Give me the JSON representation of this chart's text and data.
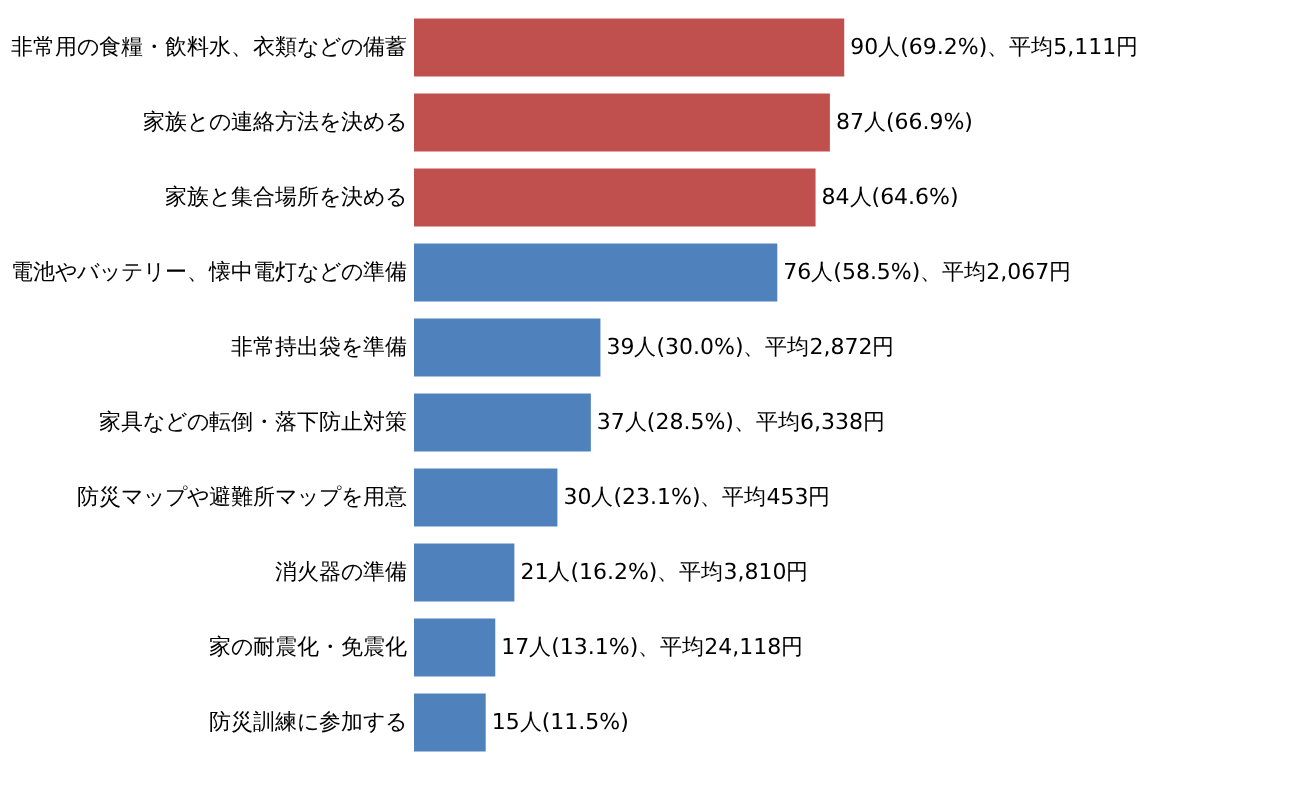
{
  "chart_data": {
    "type": "bar",
    "orientation": "horizontal",
    "categories": [
      "非常用の食糧・飲料水、衣類などの備蓄",
      "家族との連絡方法を決める",
      "家族と集合場所を決める",
      "電池やバッテリー、懐中電灯などの準備",
      "非常持出袋を準備",
      "家具などの転倒・落下防止対策",
      "防災マップや避難所マップを用意",
      "消火器の準備",
      "家の耐震化・免震化",
      "防災訓練に参加する"
    ],
    "values": [
      90,
      87,
      84,
      76,
      39,
      37,
      30,
      21,
      17,
      15
    ],
    "colors": [
      "#c0504d",
      "#c0504d",
      "#c0504d",
      "#4f81bd",
      "#4f81bd",
      "#4f81bd",
      "#4f81bd",
      "#4f81bd",
      "#4f81bd",
      "#4f81bd"
    ],
    "value_labels": [
      "90人(69.2%)、平均5,111円",
      "87人(66.9%)",
      "84人(64.6%)",
      "76人(58.5%)、平均2,067円",
      "39人(30.0%)、平均2,872円",
      "37人(28.5%)、平均6,338円",
      "30人(23.1%)、平均453円",
      "21人(16.2%)、平均3,810円",
      "17人(13.1%)、平均24,118円",
      "15人(11.5%)"
    ],
    "data_labels": false
  }
}
